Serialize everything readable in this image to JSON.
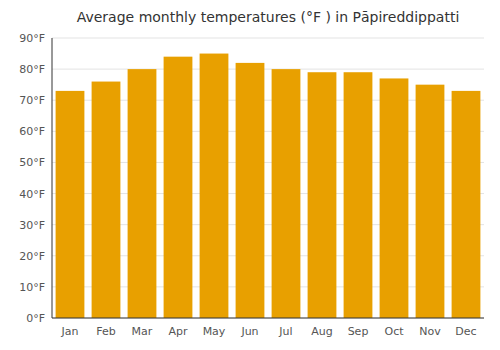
{
  "chart_data": {
    "type": "bar",
    "title": "Average monthly temperatures (°F ) in Pāpireddippatti",
    "categories": [
      "Jan",
      "Feb",
      "Mar",
      "Apr",
      "May",
      "Jun",
      "Jul",
      "Aug",
      "Sep",
      "Oct",
      "Nov",
      "Dec"
    ],
    "values": [
      73,
      76,
      80,
      84,
      85,
      82,
      80,
      79,
      79,
      77,
      75,
      73
    ],
    "color": "#E8A000",
    "ylim": [
      0,
      90
    ],
    "yticks": [
      {
        "value": 0,
        "label": "0°F"
      },
      {
        "value": 10,
        "label": "10°F"
      },
      {
        "value": 20,
        "label": "20°F"
      },
      {
        "value": 30,
        "label": "30°F"
      },
      {
        "value": 40,
        "label": "40°F"
      },
      {
        "value": 50,
        "label": "50°F"
      },
      {
        "value": 60,
        "label": "60°F"
      },
      {
        "value": 70,
        "label": "70°F"
      },
      {
        "value": 80,
        "label": "80°F"
      },
      {
        "value": 90,
        "label": "90°F"
      }
    ],
    "grid": true
  }
}
